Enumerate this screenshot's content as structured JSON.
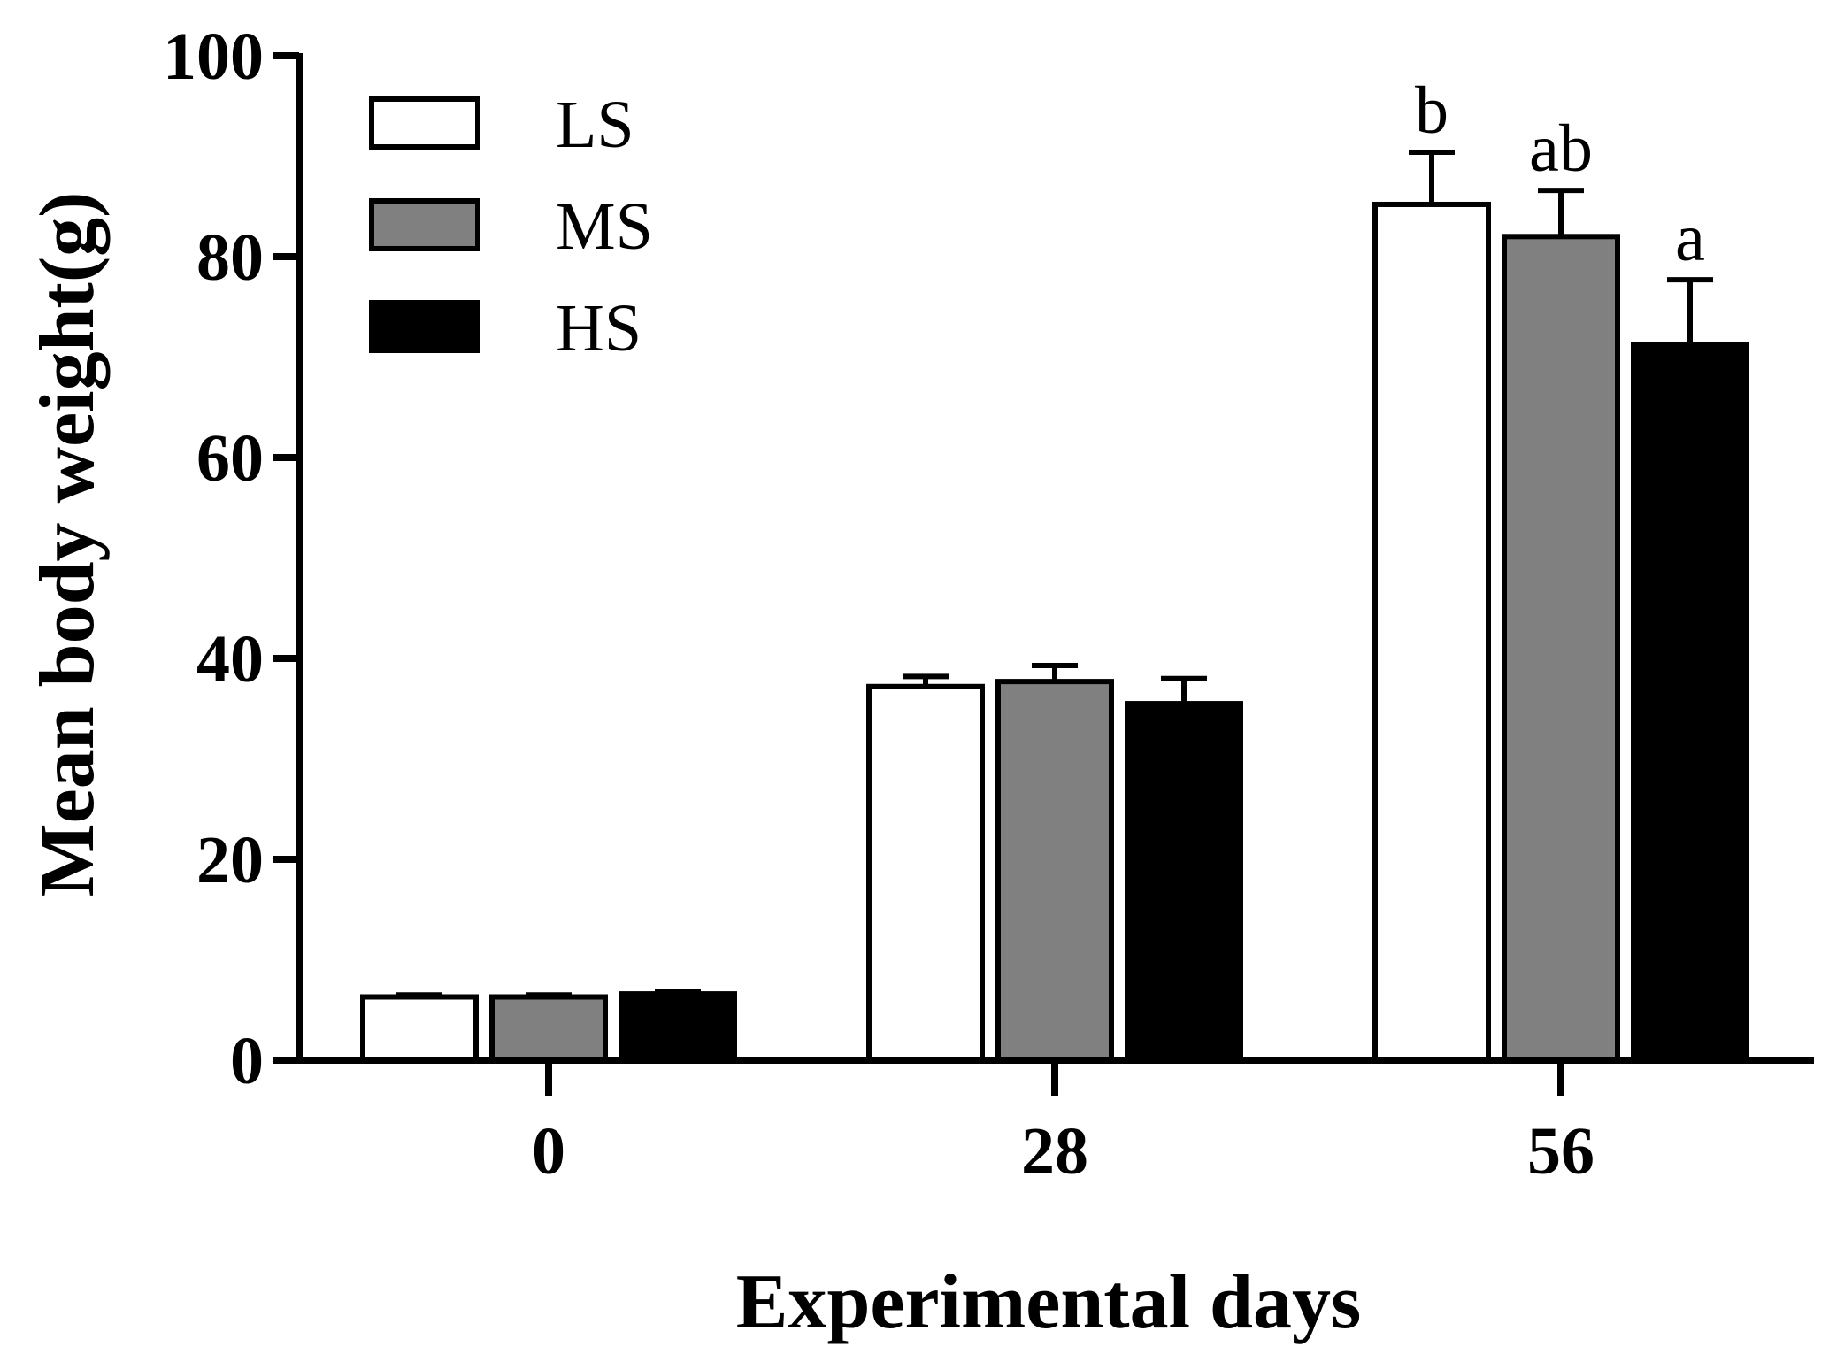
{
  "chart_data": {
    "type": "bar",
    "title": "",
    "xlabel": "Experimental days",
    "ylabel": "Mean body weight(g)",
    "ylim": [
      0,
      100
    ],
    "yticks": [
      0,
      20,
      40,
      60,
      80,
      100
    ],
    "categories": [
      "0",
      "28",
      "56"
    ],
    "series": [
      {
        "name": "LS",
        "color": "#ffffff",
        "values": [
          6.3,
          37.2,
          85.2
        ],
        "errors": [
          0.2,
          1.0,
          5.2
        ]
      },
      {
        "name": "MS",
        "color": "#808080",
        "values": [
          6.3,
          37.7,
          82.0
        ],
        "errors": [
          0.2,
          1.6,
          4.6
        ]
      },
      {
        "name": "HS",
        "color": "#000000",
        "values": [
          6.6,
          35.5,
          71.2
        ],
        "errors": [
          0.2,
          2.5,
          6.5
        ]
      }
    ],
    "significance": [
      {
        "category": "56",
        "series": "LS",
        "label": "b"
      },
      {
        "category": "56",
        "series": "MS",
        "label": "ab"
      },
      {
        "category": "56",
        "series": "HS",
        "label": "a"
      }
    ],
    "legend_position": "top-left"
  }
}
